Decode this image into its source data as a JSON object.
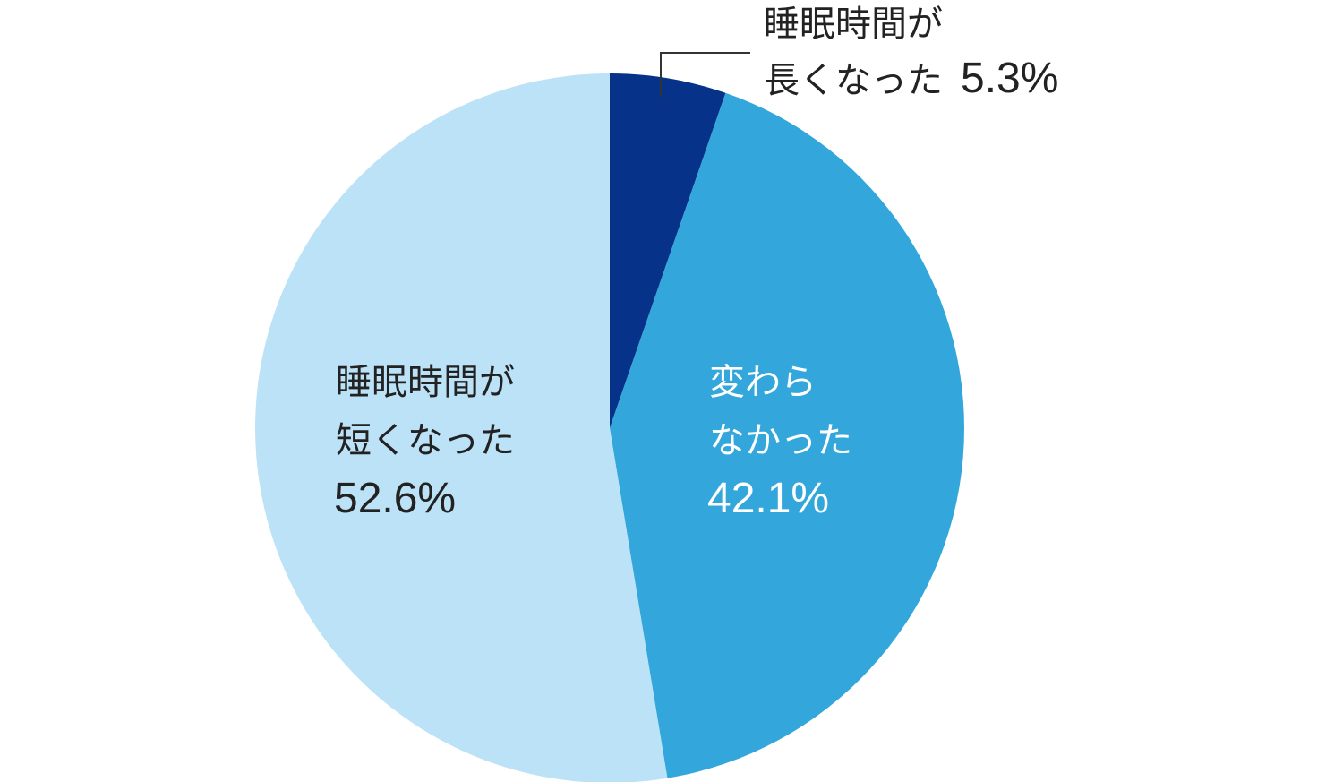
{
  "chart_data": {
    "type": "pie",
    "start": "12 o'clock",
    "direction": "clockwise",
    "slices": [
      {
        "label_lines": [
          "睡眠時間が",
          "長くなった"
        ],
        "value": 5.3,
        "value_text": "5.3%",
        "color": "#06328a",
        "text_color": "#222222",
        "label_position": "outside-top-right, with leader line"
      },
      {
        "label_lines": [
          "変わら",
          "なかった"
        ],
        "value": 42.1,
        "value_text": "42.1%",
        "color": "#33a7db",
        "text_color": "#ffffff",
        "label_position": "inside"
      },
      {
        "label_lines": [
          "睡眠時間が",
          "短くなった"
        ],
        "value": 52.6,
        "value_text": "52.6%",
        "color": "#bce2f7",
        "text_color": "#222222",
        "label_position": "inside"
      }
    ]
  }
}
